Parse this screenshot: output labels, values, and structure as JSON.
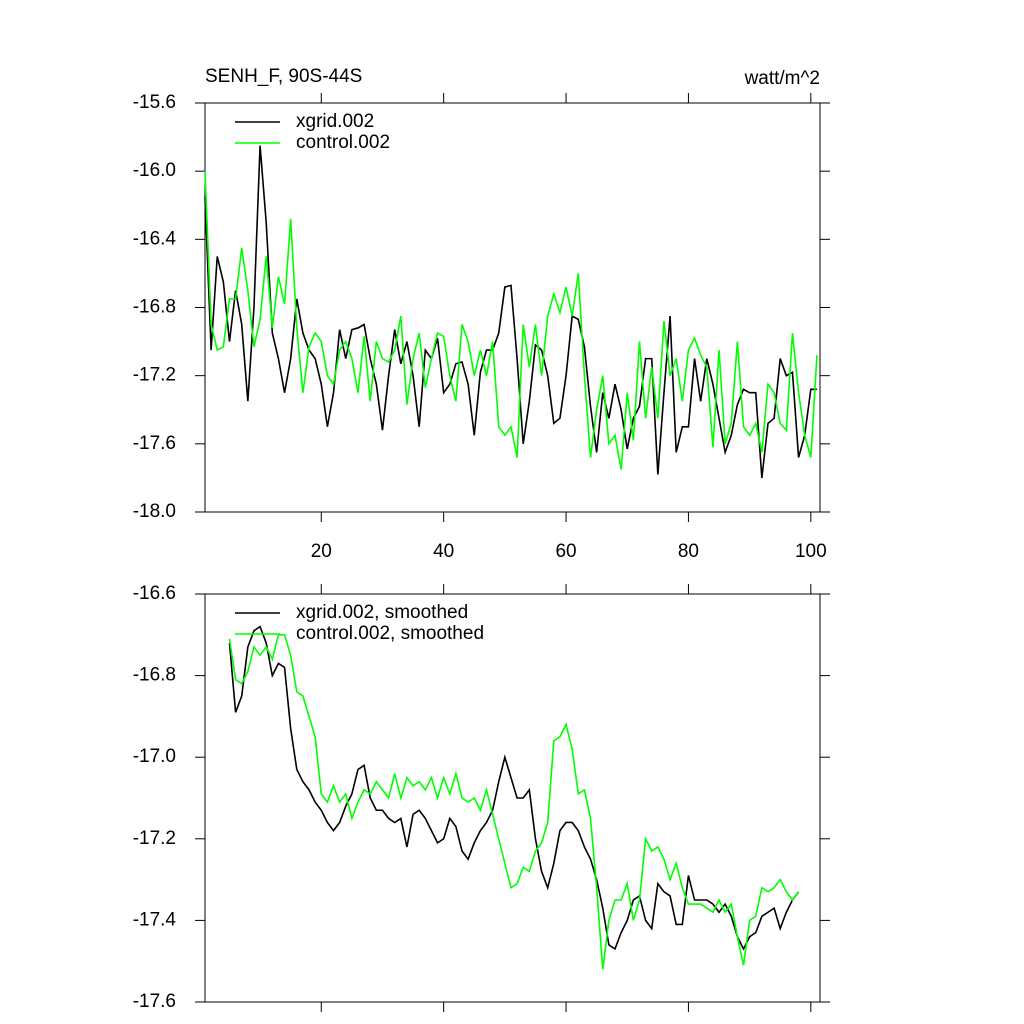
{
  "chart_data": [
    {
      "type": "line",
      "title": "SENH_F, 90S-44S",
      "units": "watt/m^2",
      "xlim": [
        1,
        101.5
      ],
      "xticks": [
        20,
        40,
        60,
        80,
        100
      ],
      "xtick_labels": true,
      "ylim": [
        -18.0,
        -15.6
      ],
      "yticks": [
        -15.6,
        {
          "value": -16,
          "label": "-16.0"
        },
        -16.4,
        -16.8,
        -17.2,
        -17.6,
        {
          "value": -18,
          "label": "-18.0"
        }
      ],
      "x": [
        1,
        2,
        3,
        4,
        5,
        6,
        7,
        8,
        9,
        10,
        11,
        12,
        13,
        14,
        15,
        16,
        17,
        18,
        19,
        20,
        21,
        22,
        23,
        24,
        25,
        26,
        27,
        28,
        29,
        30,
        31,
        32,
        33,
        34,
        35,
        36,
        37,
        38,
        39,
        40,
        41,
        42,
        43,
        44,
        45,
        46,
        47,
        48,
        49,
        50,
        51,
        52,
        53,
        54,
        55,
        56,
        57,
        58,
        59,
        60,
        61,
        62,
        63,
        64,
        65,
        66,
        67,
        68,
        69,
        70,
        71,
        72,
        73,
        74,
        75,
        76,
        77,
        78,
        79,
        80,
        81,
        82,
        83,
        84,
        85,
        86,
        87,
        88,
        89,
        90,
        91,
        92,
        93,
        94,
        95,
        96,
        97,
        98,
        99,
        100,
        101
      ],
      "series": [
        {
          "name": "xgrid.002",
          "color": "#000000",
          "values": [
            -16.15,
            -17.05,
            -16.5,
            -16.65,
            -17.0,
            -16.7,
            -16.9,
            -17.35,
            -16.8,
            -15.85,
            -16.3,
            -16.95,
            -17.1,
            -17.3,
            -17.1,
            -16.75,
            -16.95,
            -17.05,
            -17.1,
            -17.25,
            -17.5,
            -17.3,
            -16.93,
            -17.1,
            -16.93,
            -16.92,
            -16.9,
            -17.1,
            -17.25,
            -17.52,
            -17.2,
            -16.93,
            -17.13,
            -17.0,
            -17.2,
            -17.5,
            -17.05,
            -17.1,
            -16.98,
            -17.3,
            -17.25,
            -17.13,
            -17.12,
            -17.25,
            -17.55,
            -17.18,
            -17.05,
            -17.05,
            -16.95,
            -16.68,
            -16.67,
            -17.1,
            -17.6,
            -17.35,
            -17.02,
            -17.05,
            -17.2,
            -17.48,
            -17.45,
            -17.2,
            -16.85,
            -16.87,
            -17.03,
            -17.38,
            -17.65,
            -17.3,
            -17.45,
            -17.25,
            -17.4,
            -17.63,
            -17.45,
            -17.38,
            -17.1,
            -17.1,
            -17.78,
            -17.3,
            -16.85,
            -17.65,
            -17.5,
            -17.5,
            -17.1,
            -17.35,
            -17.1,
            -17.25,
            -17.45,
            -17.65,
            -17.55,
            -17.37,
            -17.28,
            -17.3,
            -17.3,
            -17.8,
            -17.48,
            -17.45,
            -17.1,
            -17.2,
            -17.18,
            -17.68,
            -17.55,
            -17.28,
            -17.28
          ]
        },
        {
          "name": "control.002",
          "color": "#00ff00",
          "values": [
            -16.0,
            -16.9,
            -17.05,
            -17.03,
            -16.75,
            -16.75,
            -16.45,
            -16.7,
            -17.03,
            -16.87,
            -16.5,
            -16.92,
            -16.62,
            -16.78,
            -16.28,
            -16.92,
            -17.3,
            -17.03,
            -16.95,
            -17.0,
            -17.2,
            -17.25,
            -17.05,
            -17.0,
            -17.1,
            -17.3,
            -16.97,
            -17.35,
            -17.0,
            -17.1,
            -17.12,
            -17.05,
            -16.85,
            -17.37,
            -17.1,
            -16.95,
            -17.27,
            -17.1,
            -16.95,
            -16.97,
            -17.2,
            -17.35,
            -16.9,
            -17.0,
            -17.2,
            -17.05,
            -17.2,
            -17.0,
            -17.5,
            -17.55,
            -17.5,
            -17.68,
            -16.9,
            -17.15,
            -16.9,
            -17.2,
            -16.85,
            -16.72,
            -16.83,
            -16.68,
            -16.85,
            -16.6,
            -17.2,
            -17.68,
            -17.4,
            -17.2,
            -17.6,
            -17.55,
            -17.75,
            -17.3,
            -17.58,
            -17.0,
            -17.45,
            -17.15,
            -17.45,
            -16.88,
            -17.2,
            -17.1,
            -17.35,
            -17.05,
            -16.98,
            -17.08,
            -17.15,
            -17.62,
            -17.05,
            -17.6,
            -17.48,
            -17.0,
            -17.5,
            -17.55,
            -17.48,
            -17.65,
            -17.25,
            -17.3,
            -17.48,
            -17.52,
            -16.95,
            -17.3,
            -17.55,
            -17.68,
            -17.08
          ]
        }
      ]
    },
    {
      "type": "line",
      "xlim": [
        1,
        101.5
      ],
      "xticks": [
        20,
        40,
        60,
        80,
        100
      ],
      "xtick_labels": false,
      "ylim": [
        -17.6,
        -16.6
      ],
      "yticks": [
        -16.6,
        -16.8,
        {
          "value": -17,
          "label": "-17.0"
        },
        -17.2,
        -17.4,
        -17.6
      ],
      "x": [
        5,
        6,
        7,
        8,
        9,
        10,
        11,
        12,
        13,
        14,
        15,
        16,
        17,
        18,
        19,
        20,
        21,
        22,
        23,
        24,
        25,
        26,
        27,
        28,
        29,
        30,
        31,
        32,
        33,
        34,
        35,
        36,
        37,
        38,
        39,
        40,
        41,
        42,
        43,
        44,
        45,
        46,
        47,
        48,
        49,
        50,
        51,
        52,
        53,
        54,
        55,
        56,
        57,
        58,
        59,
        60,
        61,
        62,
        63,
        64,
        65,
        66,
        67,
        68,
        69,
        70,
        71,
        72,
        73,
        74,
        75,
        76,
        77,
        78,
        79,
        80,
        81,
        82,
        83,
        84,
        85,
        86,
        87,
        88,
        89,
        90,
        91,
        92,
        93,
        94,
        95,
        96,
        97,
        98
      ],
      "series": [
        {
          "name": "xgrid.002, smoothed",
          "color": "#000000",
          "values": [
            -16.72,
            -16.89,
            -16.85,
            -16.73,
            -16.69,
            -16.68,
            -16.72,
            -16.8,
            -16.77,
            -16.78,
            -16.93,
            -17.03,
            -17.06,
            -17.08,
            -17.11,
            -17.13,
            -17.16,
            -17.18,
            -17.16,
            -17.12,
            -17.09,
            -17.03,
            -17.02,
            -17.1,
            -17.13,
            -17.13,
            -17.15,
            -17.16,
            -17.15,
            -17.22,
            -17.14,
            -17.13,
            -17.15,
            -17.18,
            -17.21,
            -17.2,
            -17.15,
            -17.17,
            -17.23,
            -17.25,
            -17.21,
            -17.18,
            -17.16,
            -17.13,
            -17.06,
            -17.0,
            -17.05,
            -17.1,
            -17.1,
            -17.08,
            -17.2,
            -17.28,
            -17.32,
            -17.26,
            -17.18,
            -17.16,
            -17.16,
            -17.18,
            -17.22,
            -17.25,
            -17.3,
            -17.37,
            -17.46,
            -17.47,
            -17.43,
            -17.4,
            -17.35,
            -17.34,
            -17.4,
            -17.42,
            -17.31,
            -17.33,
            -17.34,
            -17.41,
            -17.41,
            -17.29,
            -17.35,
            -17.35,
            -17.35,
            -17.36,
            -17.38,
            -17.36,
            -17.39,
            -17.44,
            -17.47,
            -17.44,
            -17.43,
            -17.39,
            -17.38,
            -17.37,
            -17.42,
            -17.38,
            -17.35,
            -17.33
          ]
        },
        {
          "name": "control.002, smoothed",
          "color": "#00ff00",
          "values": [
            -16.71,
            -16.81,
            -16.82,
            -16.79,
            -16.73,
            -16.75,
            -16.73,
            -16.76,
            -16.7,
            -16.7,
            -16.75,
            -16.84,
            -16.85,
            -16.9,
            -16.95,
            -17.09,
            -17.11,
            -17.07,
            -17.11,
            -17.09,
            -17.15,
            -17.11,
            -17.08,
            -17.09,
            -17.06,
            -17.08,
            -17.1,
            -17.04,
            -17.1,
            -17.05,
            -17.07,
            -17.06,
            -17.08,
            -17.05,
            -17.1,
            -17.05,
            -17.09,
            -17.04,
            -17.1,
            -17.11,
            -17.1,
            -17.13,
            -17.08,
            -17.14,
            -17.2,
            -17.26,
            -17.32,
            -17.31,
            -17.27,
            -17.28,
            -17.23,
            -17.21,
            -17.16,
            -16.96,
            -16.95,
            -16.92,
            -16.98,
            -17.09,
            -17.08,
            -17.15,
            -17.32,
            -17.52,
            -17.4,
            -17.35,
            -17.35,
            -17.31,
            -17.4,
            -17.35,
            -17.2,
            -17.23,
            -17.22,
            -17.25,
            -17.3,
            -17.26,
            -17.32,
            -17.36,
            -17.36,
            -17.36,
            -17.37,
            -17.38,
            -17.35,
            -17.38,
            -17.36,
            -17.44,
            -17.51,
            -17.4,
            -17.39,
            -17.32,
            -17.33,
            -17.32,
            -17.3,
            -17.33,
            -17.35,
            -17.33
          ]
        }
      ]
    }
  ]
}
